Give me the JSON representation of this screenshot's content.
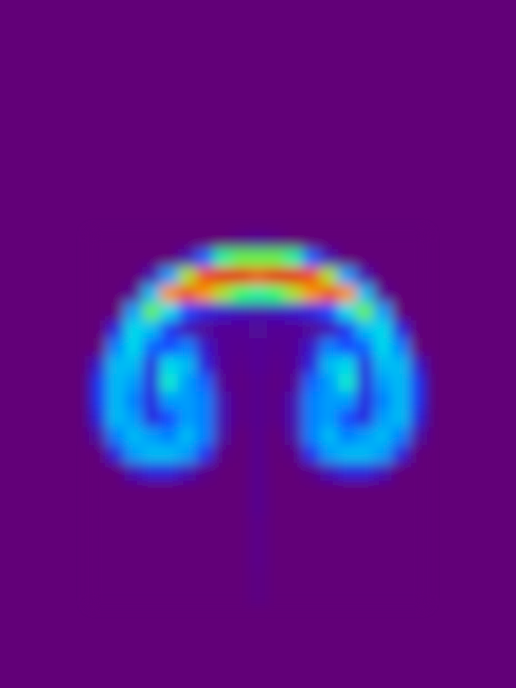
{
  "chart_data": {
    "type": "heatmap",
    "x": [
      100,
      120,
      140,
      160,
      180,
      200,
      220,
      240,
      260,
      280,
      300,
      320,
      340,
      360,
      380,
      400,
      420,
      440,
      460,
      480
    ],
    "y": [
      260,
      280,
      300,
      320,
      340,
      360,
      380,
      400,
      420,
      440,
      460,
      480,
      500,
      520,
      540,
      560,
      580,
      600,
      620,
      640,
      660,
      680
    ],
    "cells": [
      [
        0,
        0,
        0,
        0,
        0,
        0,
        0,
        0,
        0.03,
        0.05,
        0.03,
        0,
        0,
        0,
        0,
        0,
        0,
        0,
        0
      ],
      [
        0,
        0,
        0,
        0,
        0,
        0.1,
        0.35,
        0.65,
        0.75,
        0.75,
        0.75,
        0.65,
        0.35,
        0.1,
        0,
        0,
        0,
        0,
        0
      ],
      [
        0,
        0,
        0,
        0.1,
        0.45,
        0.8,
        0.95,
        1,
        1,
        0.95,
        1,
        1,
        0.95,
        0.8,
        0.45,
        0.1,
        0,
        0,
        0
      ],
      [
        0,
        0,
        0.05,
        0.5,
        0.9,
        0.95,
        0.9,
        0.8,
        0.7,
        0.65,
        0.7,
        0.8,
        0.9,
        0.95,
        0.9,
        0.5,
        0.05,
        0,
        0
      ],
      [
        0,
        0,
        0.45,
        0.75,
        0.55,
        0.3,
        0.2,
        0.15,
        0.12,
        0.1,
        0.12,
        0.15,
        0.2,
        0.3,
        0.55,
        0.75,
        0.45,
        0,
        0
      ],
      [
        0,
        0.2,
        0.55,
        0.5,
        0.25,
        0.12,
        0.06,
        0.05,
        0.05,
        0.06,
        0.05,
        0.05,
        0.06,
        0.12,
        0.25,
        0.5,
        0.55,
        0.2,
        0
      ],
      [
        0,
        0.4,
        0.55,
        0.35,
        0.3,
        0.4,
        0.15,
        0.05,
        0.04,
        0.05,
        0.04,
        0.05,
        0.15,
        0.4,
        0.3,
        0.35,
        0.55,
        0.4,
        0
      ],
      [
        0.15,
        0.5,
        0.5,
        0.2,
        0.55,
        0.5,
        0.2,
        0.05,
        0.03,
        0.05,
        0.03,
        0.05,
        0.2,
        0.5,
        0.55,
        0.2,
        0.5,
        0.5,
        0.15
      ],
      [
        0.25,
        0.5,
        0.45,
        0.2,
        0.6,
        0.45,
        0.35,
        0.05,
        0.02,
        0.04,
        0.02,
        0.05,
        0.35,
        0.45,
        0.6,
        0.2,
        0.45,
        0.5,
        0.25
      ],
      [
        0.25,
        0.5,
        0.4,
        0.2,
        0.45,
        0.45,
        0.4,
        0.1,
        0.02,
        0.04,
        0.02,
        0.1,
        0.4,
        0.45,
        0.45,
        0.2,
        0.4,
        0.5,
        0.25
      ],
      [
        0.2,
        0.5,
        0.45,
        0.2,
        0.3,
        0.45,
        0.4,
        0.1,
        0.02,
        0.04,
        0.02,
        0.1,
        0.4,
        0.45,
        0.3,
        0.2,
        0.45,
        0.5,
        0.2
      ],
      [
        0.08,
        0.4,
        0.5,
        0.45,
        0.4,
        0.5,
        0.4,
        0.08,
        0,
        0.04,
        0,
        0.08,
        0.4,
        0.5,
        0.4,
        0.45,
        0.5,
        0.4,
        0.08
      ],
      [
        0,
        0.2,
        0.45,
        0.5,
        0.5,
        0.45,
        0.25,
        0.02,
        0,
        0.04,
        0,
        0.02,
        0.25,
        0.45,
        0.5,
        0.5,
        0.45,
        0.2,
        0
      ],
      [
        0,
        0,
        0.12,
        0.2,
        0.2,
        0.12,
        0.03,
        0,
        0,
        0.04,
        0,
        0,
        0.03,
        0.12,
        0.2,
        0.2,
        0.12,
        0,
        0
      ],
      [
        0,
        0,
        0,
        0,
        0,
        0,
        0,
        0,
        0,
        0.04,
        0,
        0,
        0,
        0,
        0,
        0,
        0,
        0,
        0
      ],
      [
        0,
        0,
        0,
        0,
        0,
        0,
        0,
        0,
        0,
        0.04,
        0,
        0,
        0,
        0,
        0,
        0,
        0,
        0,
        0
      ],
      [
        0,
        0,
        0,
        0,
        0,
        0,
        0,
        0,
        0,
        0.03,
        0,
        0,
        0,
        0,
        0,
        0,
        0,
        0,
        0
      ],
      [
        0,
        0,
        0,
        0,
        0,
        0,
        0,
        0,
        0,
        0.03,
        0,
        0,
        0,
        0,
        0,
        0,
        0,
        0,
        0
      ],
      [
        0,
        0,
        0,
        0,
        0,
        0,
        0,
        0,
        0,
        0.03,
        0,
        0,
        0,
        0,
        0,
        0,
        0,
        0,
        0
      ],
      [
        0,
        0,
        0,
        0,
        0,
        0,
        0,
        0,
        0,
        0.02,
        0,
        0,
        0,
        0,
        0,
        0,
        0,
        0,
        0
      ],
      [
        0,
        0,
        0,
        0,
        0,
        0,
        0,
        0,
        0,
        0.02,
        0,
        0,
        0,
        0,
        0,
        0,
        0,
        0,
        0
      ]
    ],
    "xlim": [
      0,
      580
    ],
    "ylim": [
      0,
      773
    ],
    "color_range": [
      0,
      1
    ],
    "tick_labels": false
  }
}
